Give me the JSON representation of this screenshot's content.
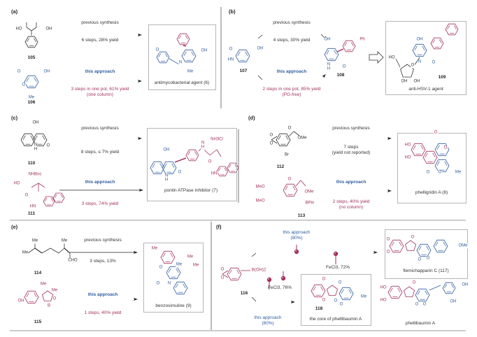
{
  "colors": {
    "text": "#333333",
    "this_approach": "#2f5d9e",
    "fragment": "#a3315f",
    "box": "#b5b5b5"
  },
  "panels": {
    "a": {
      "label": "(a)",
      "previous": "previous synthesis",
      "previous_conditions": "6 steps, 28% yield",
      "this": "this approach",
      "this_conditions": [
        "3 steps in one pot, 61% yield",
        "(one column)"
      ],
      "compounds": [
        "105",
        "106"
      ],
      "product": "antimycobacterial agent (6)"
    },
    "b": {
      "label": "(b)",
      "previous": "previous synthesis",
      "previous_conditions": "4 steps, 30% yield",
      "this": "this approach",
      "this_conditions": [
        "2 steps in one pot, 85% yield",
        "(PG-free)"
      ],
      "compounds": [
        "107",
        "108",
        "109"
      ],
      "product": "anti-HSV-1 agent"
    },
    "c": {
      "label": "(c)",
      "previous": "previous synthesis",
      "previous_conditions": "8 steps, ≤ 7% yield",
      "this": "this approach",
      "this_conditions": [
        "3 steps, 74% yield"
      ],
      "compounds": [
        "110",
        "111"
      ],
      "product": "pontin ATPase inhibitor (7)"
    },
    "d": {
      "label": "(d)",
      "previous": "previous synthesis",
      "previous_conditions": [
        "7 steps",
        "(yield not reported)"
      ],
      "this": "this approach",
      "this_conditions": [
        "2 steps, 40% yield",
        "(no column)"
      ],
      "compounds": [
        "112",
        "113"
      ],
      "product": "phelligridin A (8)"
    },
    "e": {
      "label": "(e)",
      "previous": "previous synthesis",
      "previous_conditions": "3 steps, 13%",
      "this": "this approach",
      "this_conditions": [
        "1 steps, 40% yield"
      ],
      "compounds": [
        "114",
        "115"
      ],
      "product": "benzosimuline (9)"
    },
    "f": {
      "label": "(f)",
      "this_top": [
        "this approach",
        "(80%)"
      ],
      "fecl3_top": "FeCl3, 72%",
      "fecl3_bottom": "FeCl3, 76%",
      "this_bottom": [
        "this approach",
        "(80%)"
      ],
      "compounds": [
        "116",
        "118"
      ],
      "product_top": "flemichapparin C (117)",
      "product_core": "the core of phellibaumin A",
      "product_bottom": "phellibaumin A"
    }
  },
  "atoms": {
    "a": [
      "HO",
      "OH",
      "O",
      "OH",
      "O",
      "Me",
      "O",
      "OH",
      "N",
      "Me"
    ],
    "b": [
      "O",
      "HN",
      "OH",
      "OH",
      "Ph",
      "N",
      "H",
      "O",
      "OH",
      "HO",
      "O",
      "N",
      "O",
      "OH",
      "OH"
    ],
    "c": [
      "OH",
      "N",
      "H",
      "O",
      "HO",
      "NHBoc",
      "O",
      "HN",
      "OH",
      "N",
      "H",
      "O",
      "N",
      "H",
      "O",
      "NH3Cl",
      "HN"
    ],
    "d": [
      "O",
      "O",
      "O",
      "OMe",
      "Br",
      "MeO",
      "MeO",
      "O",
      "OMe",
      "BPin",
      "HO",
      "HO",
      "O",
      "O",
      "O",
      "O",
      "Me"
    ],
    "e": [
      "Me",
      "Me",
      "Me",
      "CHO",
      "Me",
      "Me",
      "O",
      "B",
      "OH",
      "Me",
      "Me",
      "Me",
      "Me",
      "O",
      "O",
      "N",
      "Me"
    ],
    "f": [
      "O",
      "O",
      "B(OH)2",
      "O",
      "O",
      "O",
      "O",
      "O",
      "OMe",
      "O",
      "O",
      "O",
      "O",
      "O",
      "Me",
      "HO",
      "HO",
      "O",
      "O",
      "O",
      "OH",
      "OH"
    ]
  }
}
